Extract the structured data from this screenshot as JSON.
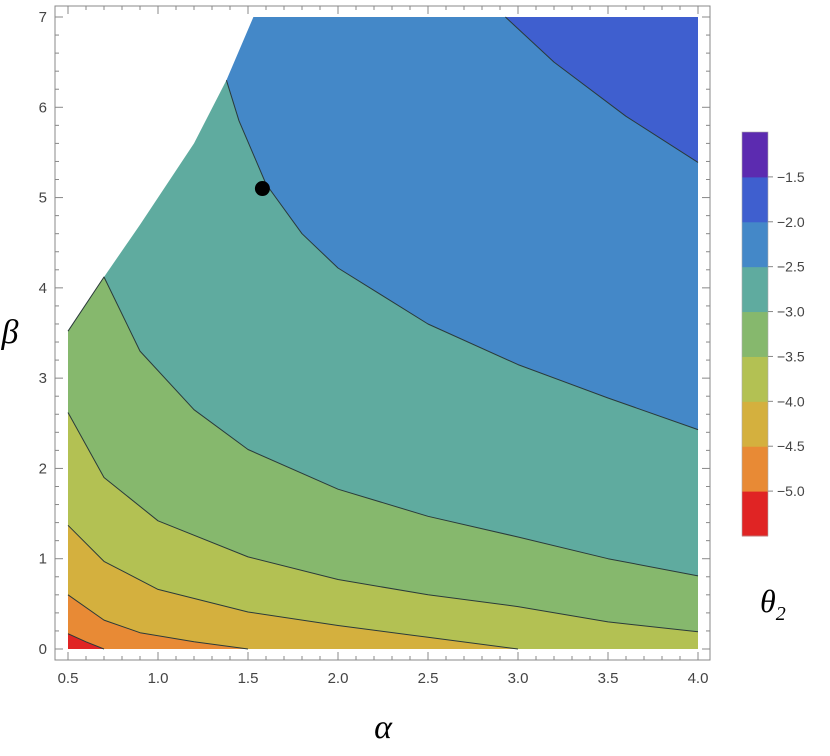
{
  "chart_data": {
    "type": "contour",
    "xlabel": "α",
    "ylabel": "β",
    "xlim": [
      0.5,
      4.0
    ],
    "ylim": [
      0,
      7
    ],
    "x_ticks": [
      "0.5",
      "1.0",
      "1.5",
      "2.0",
      "2.5",
      "3.0",
      "3.5",
      "4.0"
    ],
    "y_ticks": [
      "0",
      "1",
      "2",
      "3",
      "4",
      "5",
      "6",
      "7"
    ],
    "legend": {
      "title": "θ",
      "title_subscript": "2",
      "placement": "right",
      "labels": [
        "−1.5",
        "−2.0",
        "−2.5",
        "−3.0",
        "−3.5",
        "−4.0",
        "−4.5",
        "−5.0"
      ],
      "band_colors": [
        "#e02424",
        "#e88a35",
        "#d4b03e",
        "#b3c153",
        "#86b86d",
        "#5fab9f",
        "#4488c8",
        "#3f5fcf",
        "#5c2bb0"
      ]
    },
    "contour_levels": [
      -5.0,
      -4.5,
      -4.0,
      -3.5,
      -3.0,
      -2.5,
      -2.0,
      -1.5
    ],
    "contour_lines": [
      {
        "level": -5.0,
        "points": [
          [
            0.5,
            0.17
          ],
          [
            0.6,
            0.08
          ],
          [
            0.7,
            0.0
          ]
        ]
      },
      {
        "level": -4.5,
        "points": [
          [
            0.5,
            0.6
          ],
          [
            0.7,
            0.32
          ],
          [
            0.9,
            0.18
          ],
          [
            1.2,
            0.08
          ],
          [
            1.5,
            0.0
          ]
        ]
      },
      {
        "level": -4.0,
        "points": [
          [
            0.5,
            1.37
          ],
          [
            0.7,
            0.97
          ],
          [
            1.0,
            0.66
          ],
          [
            1.5,
            0.41
          ],
          [
            2.0,
            0.26
          ],
          [
            2.5,
            0.13
          ],
          [
            3.0,
            0.0
          ]
        ]
      },
      {
        "level": -3.5,
        "points": [
          [
            0.5,
            2.62
          ],
          [
            0.7,
            1.9
          ],
          [
            1.0,
            1.42
          ],
          [
            1.5,
            1.02
          ],
          [
            2.0,
            0.77
          ],
          [
            2.5,
            0.6
          ],
          [
            3.0,
            0.47
          ],
          [
            3.5,
            0.3
          ],
          [
            4.0,
            0.19
          ]
        ]
      },
      {
        "level": -3.0,
        "points": [
          [
            0.5,
            3.52
          ],
          [
            0.7,
            4.12
          ],
          [
            0.9,
            3.3
          ],
          [
            1.2,
            2.65
          ],
          [
            1.5,
            2.21
          ],
          [
            2.0,
            1.77
          ],
          [
            2.5,
            1.47
          ],
          [
            3.0,
            1.24
          ],
          [
            3.5,
            1.0
          ],
          [
            4.0,
            0.81
          ]
        ]
      },
      {
        "level": -2.5,
        "points": [
          [
            1.38,
            6.3
          ],
          [
            1.45,
            5.85
          ],
          [
            1.6,
            5.15
          ],
          [
            1.8,
            4.6
          ],
          [
            2.0,
            4.22
          ],
          [
            2.5,
            3.6
          ],
          [
            3.0,
            3.15
          ],
          [
            3.5,
            2.78
          ],
          [
            4.0,
            2.43
          ]
        ]
      },
      {
        "level": -2.0,
        "points": [
          [
            2.93,
            7.0
          ],
          [
            3.2,
            6.5
          ],
          [
            3.6,
            5.9
          ],
          [
            4.0,
            5.39
          ]
        ]
      }
    ],
    "feasible_boundary": [
      [
        0.5,
        3.52
      ],
      [
        0.7,
        4.12
      ],
      [
        0.9,
        4.7
      ],
      [
        1.2,
        5.6
      ],
      [
        1.38,
        6.3
      ],
      [
        1.53,
        7.0
      ]
    ],
    "marked_point": {
      "x": 1.58,
      "y": 5.1
    }
  }
}
